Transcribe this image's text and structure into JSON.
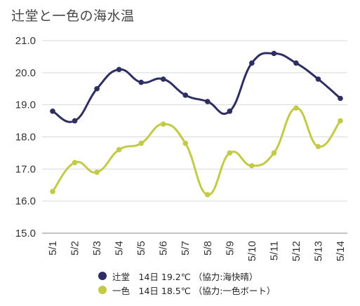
{
  "chart_data": {
    "type": "line",
    "title": "辻堂と一色の海水温",
    "categories": [
      "5/1",
      "5/2",
      "5/3",
      "5/4",
      "5/5",
      "5/6",
      "5/7",
      "5/8",
      "5/9",
      "5/10",
      "5/11",
      "5/12",
      "5/13",
      "5/14"
    ],
    "ylim": [
      15.0,
      21.0
    ],
    "yticks": [
      "15.0",
      "16.0",
      "17.0",
      "18.0",
      "19.0",
      "20.0",
      "21.0"
    ],
    "grid": "horizontal",
    "legend_position": "bottom",
    "series": [
      {
        "name": "辻堂",
        "legend_label": "辻堂　14日 19.2℃ （協力:海快晴）",
        "color": "#2e2e63",
        "values": [
          18.8,
          18.5,
          19.5,
          20.1,
          19.7,
          19.8,
          19.3,
          19.1,
          18.8,
          20.3,
          20.6,
          20.3,
          19.8,
          19.2
        ]
      },
      {
        "name": "一色",
        "legend_label": "一色　14日 18.5℃ （協力:一色ボート）",
        "color": "#c2cb45",
        "values": [
          16.3,
          17.2,
          16.9,
          17.6,
          17.8,
          18.4,
          17.8,
          16.2,
          17.5,
          17.1,
          17.5,
          18.9,
          17.7,
          18.5
        ]
      }
    ]
  }
}
